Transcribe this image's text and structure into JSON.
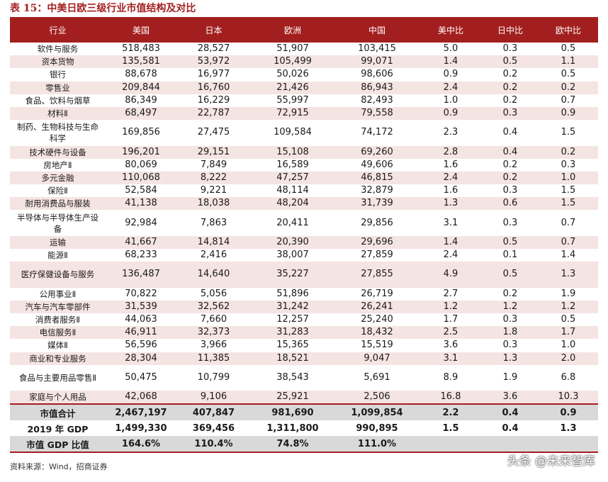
{
  "title": "表 15：中美日欧三级行业市值结构及对比",
  "headers": [
    "行业",
    "美国",
    "日本",
    "欧洲",
    "中国",
    "美中比",
    "日中比",
    "欧中比"
  ],
  "rows": [
    {
      "name": "软件与服务",
      "us": "518,483",
      "jp": "28,527",
      "eu": "51,907",
      "cn": "103,415",
      "r1": "5.0",
      "r2": "0.3",
      "r3": "0.5"
    },
    {
      "name": "资本货物",
      "us": "135,581",
      "jp": "53,972",
      "eu": "105,499",
      "cn": "99,071",
      "r1": "1.4",
      "r2": "0.5",
      "r3": "1.1"
    },
    {
      "name": "银行",
      "us": "88,678",
      "jp": "16,977",
      "eu": "50,026",
      "cn": "98,606",
      "r1": "0.9",
      "r2": "0.2",
      "r3": "0.5"
    },
    {
      "name": "零售业",
      "us": "209,844",
      "jp": "16,760",
      "eu": "21,426",
      "cn": "86,943",
      "r1": "2.4",
      "r2": "0.2",
      "r3": "0.2"
    },
    {
      "name": "食品、饮料与烟草",
      "us": "86,349",
      "jp": "16,229",
      "eu": "55,997",
      "cn": "82,493",
      "r1": "1.0",
      "r2": "0.2",
      "r3": "0.7"
    },
    {
      "name": "材料Ⅱ",
      "us": "68,497",
      "jp": "22,787",
      "eu": "72,915",
      "cn": "79,558",
      "r1": "0.9",
      "r2": "0.3",
      "r3": "0.9"
    },
    {
      "name": "制药、生物科技与生命科学",
      "us": "169,856",
      "jp": "27,475",
      "eu": "109,584",
      "cn": "74,172",
      "r1": "2.3",
      "r2": "0.4",
      "r3": "1.5"
    },
    {
      "name": "技术硬件与设备",
      "us": "196,201",
      "jp": "29,151",
      "eu": "15,108",
      "cn": "69,260",
      "r1": "2.8",
      "r2": "0.4",
      "r3": "0.2"
    },
    {
      "name": "房地产Ⅱ",
      "us": "80,069",
      "jp": "7,849",
      "eu": "16,589",
      "cn": "49,606",
      "r1": "1.6",
      "r2": "0.2",
      "r3": "0.3"
    },
    {
      "name": "多元金融",
      "us": "110,068",
      "jp": "8,222",
      "eu": "47,257",
      "cn": "46,815",
      "r1": "2.4",
      "r2": "0.2",
      "r3": "1.0"
    },
    {
      "name": "保险Ⅱ",
      "us": "52,584",
      "jp": "9,221",
      "eu": "48,114",
      "cn": "32,879",
      "r1": "1.6",
      "r2": "0.3",
      "r3": "1.5"
    },
    {
      "name": "耐用消费品与服装",
      "us": "41,138",
      "jp": "18,038",
      "eu": "48,204",
      "cn": "31,739",
      "r1": "1.3",
      "r2": "0.6",
      "r3": "1.5"
    },
    {
      "name": "半导体与半导体生产设备",
      "us": "92,984",
      "jp": "7,863",
      "eu": "20,411",
      "cn": "29,856",
      "r1": "3.1",
      "r2": "0.3",
      "r3": "0.7"
    },
    {
      "name": "运输",
      "us": "41,667",
      "jp": "14,814",
      "eu": "20,390",
      "cn": "29,696",
      "r1": "1.4",
      "r2": "0.5",
      "r3": "0.7"
    },
    {
      "name": "能源Ⅱ",
      "us": "68,233",
      "jp": "2,416",
      "eu": "38,007",
      "cn": "27,859",
      "r1": "2.4",
      "r2": "0.1",
      "r3": "1.4"
    },
    {
      "name": "医疗保健设备与服务",
      "us": "136,487",
      "jp": "14,640",
      "eu": "35,227",
      "cn": "27,855",
      "r1": "4.9",
      "r2": "0.5",
      "r3": "1.3"
    },
    {
      "name": "公用事业Ⅱ",
      "us": "70,822",
      "jp": "5,056",
      "eu": "51,896",
      "cn": "26,719",
      "r1": "2.7",
      "r2": "0.2",
      "r3": "1.9"
    },
    {
      "name": "汽车与汽车零部件",
      "us": "31,539",
      "jp": "32,562",
      "eu": "31,242",
      "cn": "26,241",
      "r1": "1.2",
      "r2": "1.2",
      "r3": "1.2"
    },
    {
      "name": "消费者服务Ⅱ",
      "us": "44,063",
      "jp": "7,660",
      "eu": "12,257",
      "cn": "25,240",
      "r1": "1.7",
      "r2": "0.3",
      "r3": "0.5"
    },
    {
      "name": "电信服务Ⅱ",
      "us": "46,911",
      "jp": "32,373",
      "eu": "31,283",
      "cn": "18,432",
      "r1": "2.5",
      "r2": "1.8",
      "r3": "1.7"
    },
    {
      "name": "媒体Ⅱ",
      "us": "56,596",
      "jp": "3,966",
      "eu": "15,365",
      "cn": "15,519",
      "r1": "3.6",
      "r2": "0.3",
      "r3": "1.0"
    },
    {
      "name": "商业和专业服务",
      "us": "28,304",
      "jp": "11,385",
      "eu": "18,521",
      "cn": "9,047",
      "r1": "3.1",
      "r2": "1.3",
      "r3": "2.0"
    },
    {
      "name": "食品与主要用品零售Ⅱ",
      "us": "50,475",
      "jp": "10,799",
      "eu": "38,543",
      "cn": "5,691",
      "r1": "8.9",
      "r2": "1.9",
      "r3": "6.8"
    },
    {
      "name": "家庭与个人用品",
      "us": "42,068",
      "jp": "9,106",
      "eu": "25,921",
      "cn": "2,506",
      "r1": "16.8",
      "r2": "3.6",
      "r3": "10.3"
    }
  ],
  "summary": [
    {
      "name": "市值合计",
      "us": "2,467,197",
      "jp": "407,847",
      "eu": "981,690",
      "cn": "1,099,854",
      "r1": "2.2",
      "r2": "0.4",
      "r3": "0.9"
    },
    {
      "name": "2019 年 GDP",
      "us": "1,499,330",
      "jp": "369,456",
      "eu": "1,311,800",
      "cn": "990,895",
      "r1": "1.5",
      "r2": "0.4",
      "r3": "1.3"
    },
    {
      "name": "市值 GDP 比值",
      "us": "164.6%",
      "jp": "110.4%",
      "eu": "74.8%",
      "cn": "111.0%",
      "r1": "",
      "r2": "",
      "r3": ""
    }
  ],
  "source": "资料来源：Wind，招商证券",
  "watermark": "头条 @未来智库"
}
